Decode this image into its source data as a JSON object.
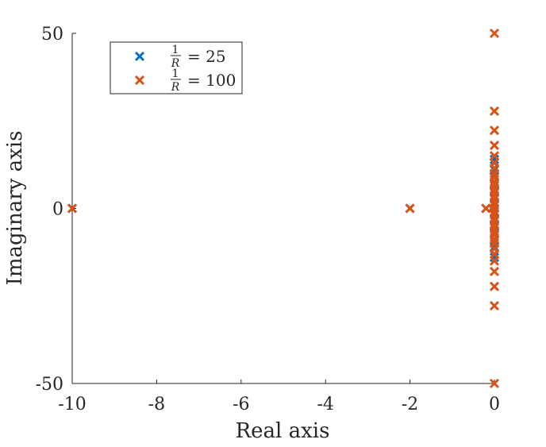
{
  "chart_data": {
    "type": "scatter",
    "xlabel": "Real axis",
    "ylabel": "Imaginary axis",
    "xlim": [
      -10,
      0
    ],
    "ylim": [
      -50,
      50
    ],
    "xticks": [
      -10,
      -8,
      -6,
      -4,
      -2,
      0
    ],
    "yticks": [
      -50,
      0,
      50
    ],
    "xtick_labels": [
      "-10",
      "-8",
      "-6",
      "-4",
      "-2",
      "0"
    ],
    "ytick_labels": [
      "-50",
      "0",
      "50"
    ],
    "grid": false,
    "legend_position": "top-left",
    "marker": "x",
    "series": [
      {
        "name": "1/R = 25",
        "legend_numerator": "1",
        "legend_denominator": "R",
        "legend_value": "= 25",
        "color": "#0072BD",
        "points": [
          [
            -10,
            0
          ],
          [
            -2,
            0
          ],
          [
            -0.2,
            0
          ],
          [
            -0.05,
            0
          ],
          [
            0,
            14
          ],
          [
            0,
            -14
          ],
          [
            0,
            11
          ],
          [
            0,
            -11
          ],
          [
            0,
            9
          ],
          [
            0,
            -9
          ],
          [
            0,
            7
          ],
          [
            0,
            -7
          ],
          [
            0,
            5
          ],
          [
            0,
            -5
          ],
          [
            0,
            3
          ],
          [
            0,
            -3
          ],
          [
            0,
            1.5
          ],
          [
            0,
            -1.5
          ]
        ]
      },
      {
        "name": "1/R = 100",
        "legend_numerator": "1",
        "legend_denominator": "R",
        "legend_value": "= 100",
        "color": "#D95319",
        "points": [
          [
            -10,
            0
          ],
          [
            -2,
            0
          ],
          [
            -0.2,
            0
          ],
          [
            -0.05,
            0
          ],
          [
            0,
            0
          ],
          [
            0,
            50
          ],
          [
            0,
            -50
          ],
          [
            0,
            27.8
          ],
          [
            0,
            -27.8
          ],
          [
            0,
            22.3
          ],
          [
            0,
            -22.3
          ],
          [
            0,
            18
          ],
          [
            0,
            -18
          ],
          [
            0,
            15
          ],
          [
            0,
            -15
          ],
          [
            0,
            13
          ],
          [
            0,
            -13
          ],
          [
            0,
            11.5
          ],
          [
            0,
            -11.5
          ],
          [
            0,
            10
          ],
          [
            0,
            -10
          ],
          [
            0,
            8.8
          ],
          [
            0,
            -8.8
          ],
          [
            0,
            7.6
          ],
          [
            0,
            -7.6
          ],
          [
            0,
            6.5
          ],
          [
            0,
            -6.5
          ],
          [
            0,
            5.5
          ],
          [
            0,
            -5.5
          ],
          [
            0,
            4.5
          ],
          [
            0,
            -4.5
          ],
          [
            0,
            3.6
          ],
          [
            0,
            -3.6
          ],
          [
            0,
            2.7
          ],
          [
            0,
            -2.7
          ],
          [
            0,
            1.8
          ],
          [
            0,
            -1.8
          ],
          [
            0,
            0.9
          ],
          [
            0,
            -0.9
          ]
        ]
      }
    ]
  }
}
